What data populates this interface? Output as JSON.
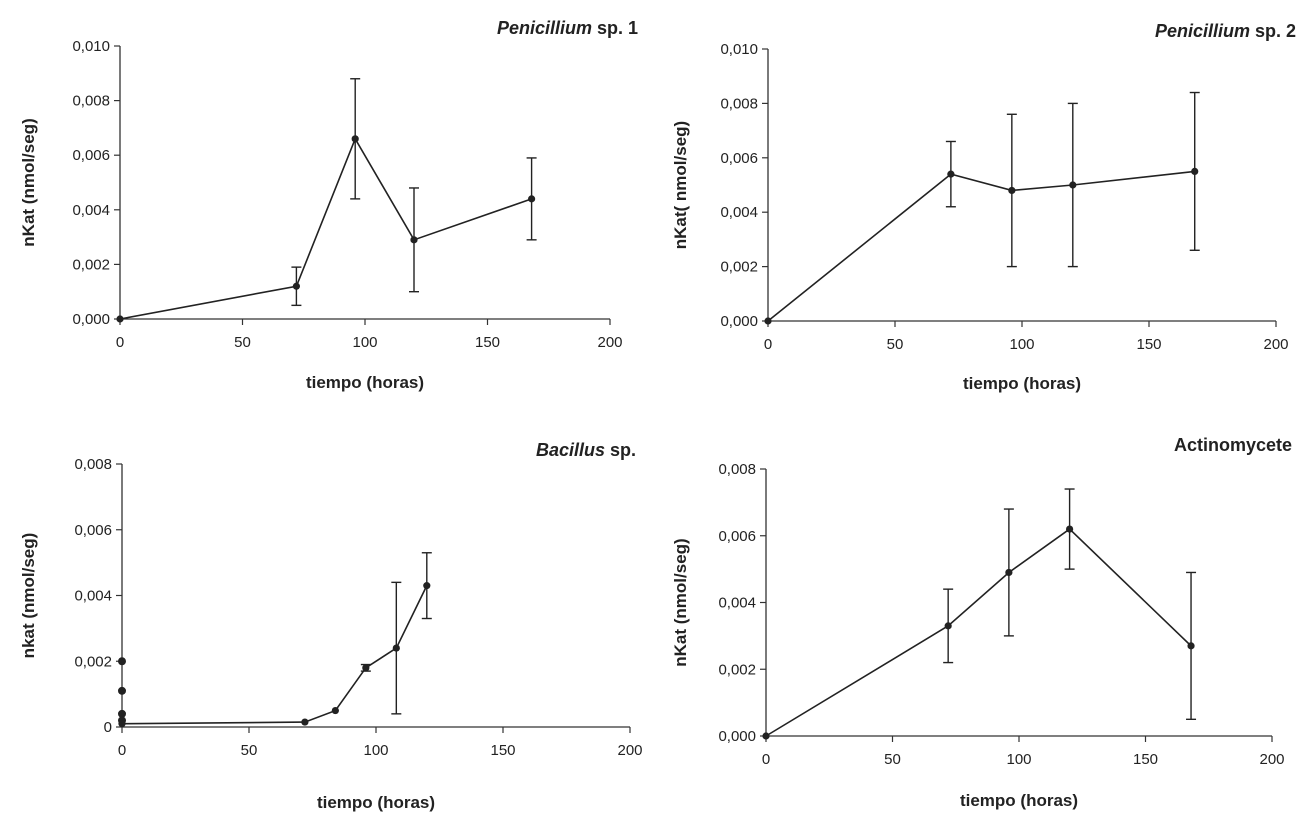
{
  "chart_data": [
    {
      "type": "line",
      "title_parts": [
        {
          "text": "Penicillium",
          "italic": true
        },
        {
          "text": " sp. 1",
          "italic": false
        }
      ],
      "xlabel": "tiempo (horas)",
      "ylabel": "nKat (nmol/seg)",
      "xlim": [
        0,
        200
      ],
      "ylim": [
        0,
        0.01
      ],
      "x_ticks": [
        0,
        50,
        100,
        150,
        200
      ],
      "x_tick_labels": [
        "0",
        "50",
        "100",
        "150",
        "200"
      ],
      "y_ticks": [
        0,
        0.002,
        0.004,
        0.006,
        0.008,
        0.01
      ],
      "y_tick_labels": [
        "0,000",
        "0,002",
        "0,004",
        "0,006",
        "0,008",
        "0,010"
      ],
      "x": [
        0,
        72,
        96,
        120,
        168
      ],
      "y": [
        0.0,
        0.0012,
        0.0066,
        0.0029,
        0.0044
      ],
      "error": [
        0.0,
        0.0007,
        0.0022,
        0.0019,
        0.0015
      ]
    },
    {
      "type": "line",
      "title_parts": [
        {
          "text": "Penicillium",
          "italic": true
        },
        {
          "text": " sp. 2",
          "italic": false
        }
      ],
      "xlabel": "tiempo (horas)",
      "ylabel": "nKat( nmol/seg)",
      "xlim": [
        0,
        200
      ],
      "ylim": [
        0,
        0.01
      ],
      "x_ticks": [
        0,
        50,
        100,
        150,
        200
      ],
      "x_tick_labels": [
        "0",
        "50",
        "100",
        "150",
        "200"
      ],
      "y_ticks": [
        0,
        0.002,
        0.004,
        0.006,
        0.008,
        0.01
      ],
      "y_tick_labels": [
        "0,000",
        "0,002",
        "0,004",
        "0,006",
        "0,008",
        "0,010"
      ],
      "x": [
        0,
        72,
        96,
        120,
        168
      ],
      "y": [
        0.0,
        0.0054,
        0.0048,
        0.005,
        0.0055
      ],
      "error": [
        0.0,
        0.0012,
        0.0028,
        0.003,
        0.0029
      ]
    },
    {
      "type": "line",
      "title_parts": [
        {
          "text": "Bacillus",
          "italic": true
        },
        {
          "text": "  sp.",
          "italic": false
        }
      ],
      "xlabel": "tiempo (horas)",
      "ylabel": "nkat (nmol/seg)",
      "xlim": [
        0,
        200
      ],
      "ylim": [
        0,
        0.008
      ],
      "x_ticks": [
        0,
        50,
        100,
        150,
        200
      ],
      "x_tick_labels": [
        "0",
        "50",
        "100",
        "150",
        "200"
      ],
      "y_ticks": [
        0,
        0.002,
        0.004,
        0.006,
        0.008
      ],
      "y_tick_labels": [
        "0",
        "0,002",
        "0,004",
        "0,006",
        "0,008"
      ],
      "x": [
        0,
        72,
        84,
        96,
        108,
        120
      ],
      "y": [
        0.0001,
        0.00015,
        0.0005,
        0.0018,
        0.0024,
        0.0043
      ],
      "error": [
        0.0,
        0.0,
        0.0,
        0.0001,
        0.002,
        0.001
      ],
      "extra_points": [
        {
          "x": 0,
          "y": 0.002
        },
        {
          "x": 0,
          "y": 0.0011
        },
        {
          "x": 0,
          "y": 0.0004
        },
        {
          "x": 0,
          "y": 0.0002
        }
      ]
    },
    {
      "type": "line",
      "title_parts": [
        {
          "text": "Actinomycete",
          "italic": false
        }
      ],
      "xlabel": "tiempo (horas)",
      "ylabel": "nKat (nmol/seg)",
      "xlim": [
        0,
        200
      ],
      "ylim": [
        0,
        0.008
      ],
      "x_ticks": [
        0,
        50,
        100,
        150,
        200
      ],
      "x_tick_labels": [
        "0",
        "50",
        "100",
        "150",
        "200"
      ],
      "y_ticks": [
        0,
        0.002,
        0.004,
        0.006,
        0.008
      ],
      "y_tick_labels": [
        "0,000",
        "0,002",
        "0,004",
        "0,006",
        "0,008"
      ],
      "x": [
        0,
        72,
        96,
        120,
        168
      ],
      "y": [
        0.0,
        0.0033,
        0.0049,
        0.0062,
        0.0027
      ],
      "error": [
        0.0,
        0.0011,
        0.0019,
        0.0012,
        0.0022
      ]
    }
  ]
}
